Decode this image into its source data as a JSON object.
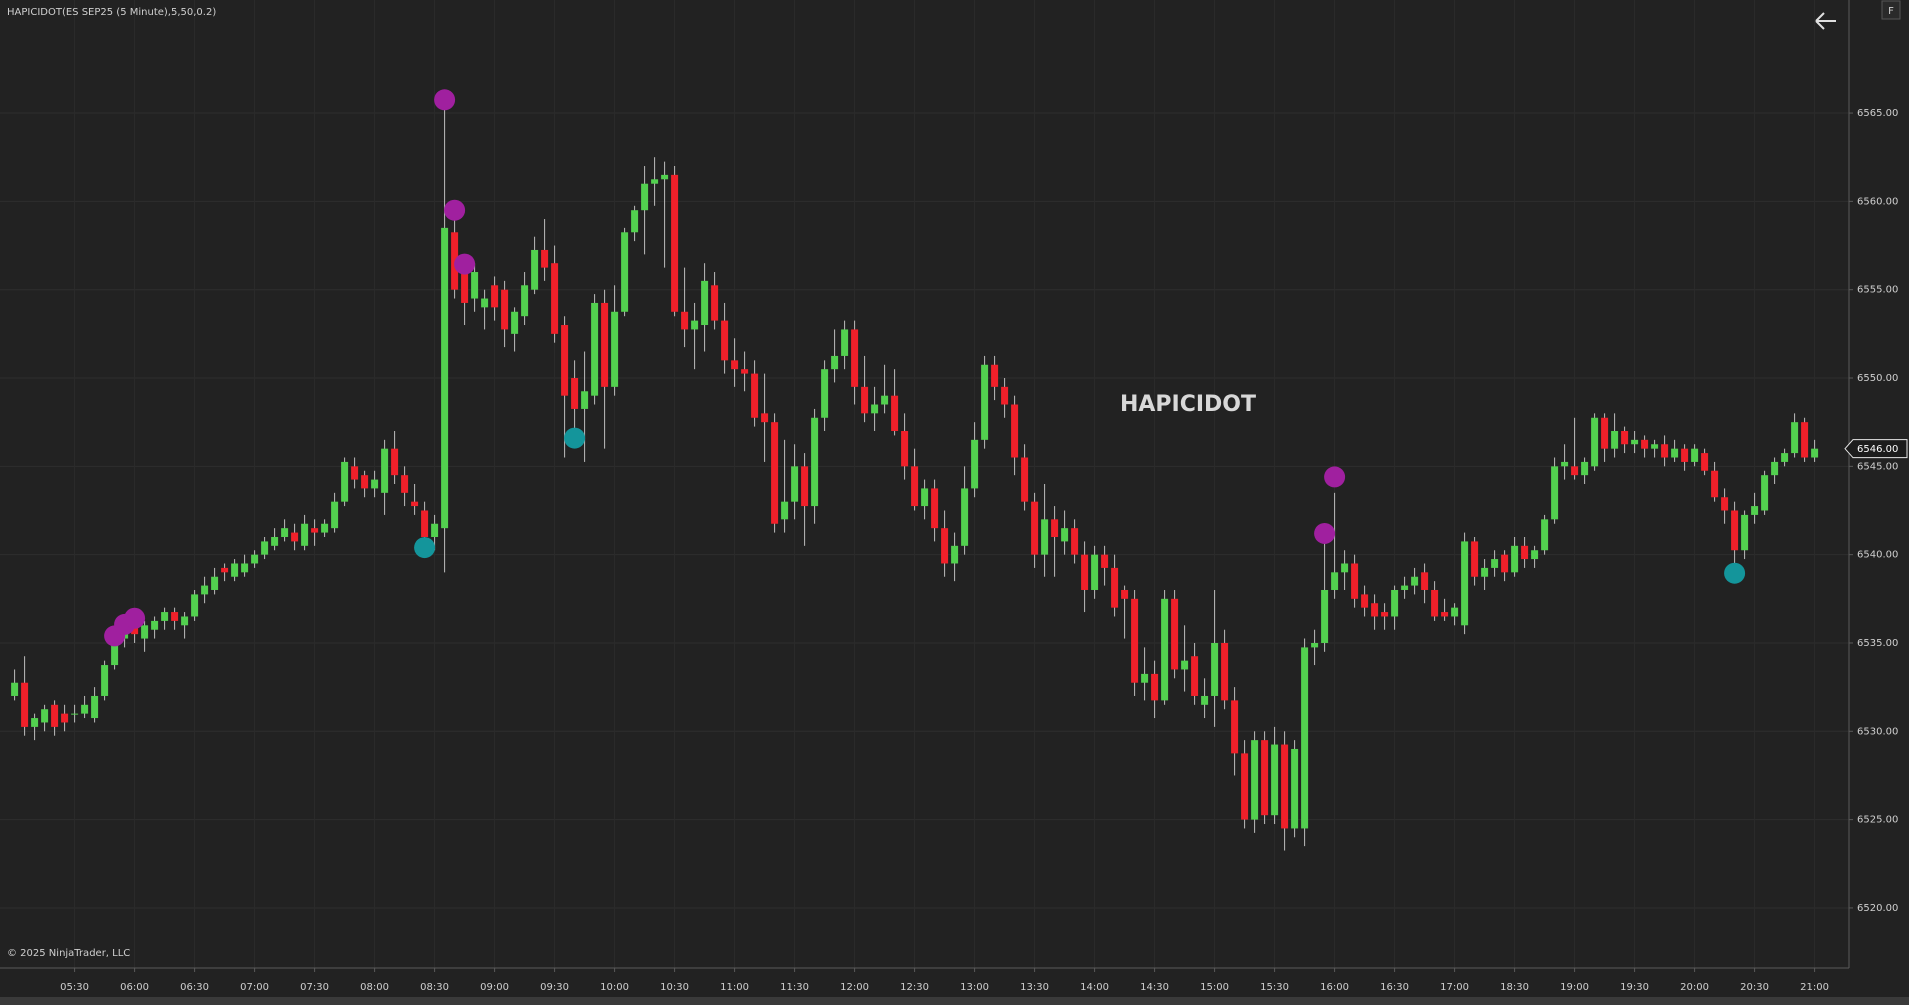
{
  "chart_data": {
    "type": "candlestick",
    "title": "HAPICIDOT(ES SEP25 (5 Minute),5,50,0.2)",
    "watermark": "HAPICIDOT",
    "copyright": "© 2025 NinjaTrader, LLC",
    "button": "F",
    "categories": [
      null,
      null,
      null,
      null,
      null,
      null,
      "05:30",
      null,
      null,
      null,
      null,
      null,
      "06:00",
      null,
      null,
      null,
      null,
      null,
      "06:30",
      null,
      null,
      null,
      null,
      null,
      "07:00",
      null,
      null,
      null,
      null,
      null,
      "07:30",
      null,
      null,
      null,
      null,
      null,
      "08:00",
      null,
      null,
      null,
      null,
      null,
      "08:30",
      null,
      null,
      null,
      null,
      null,
      "09:00",
      null,
      null,
      null,
      null,
      null,
      "09:30",
      null,
      null,
      null,
      null,
      null,
      "10:00",
      null,
      null,
      null,
      null,
      null,
      "10:30",
      null,
      null,
      null,
      null,
      null,
      "11:00",
      null,
      null,
      null,
      null,
      null,
      "11:30",
      null,
      null,
      null,
      null,
      null,
      "12:00",
      null,
      null,
      null,
      null,
      null,
      "12:30",
      null,
      null,
      null,
      null,
      null,
      "13:00",
      null,
      null,
      null,
      null,
      null,
      "13:30",
      null,
      null,
      null,
      null,
      null,
      "14:00",
      null,
      null,
      null,
      null,
      null,
      "14:30",
      null,
      null,
      null,
      null,
      null,
      "15:00",
      null,
      null,
      null,
      null,
      null,
      "15:30",
      null,
      null,
      null,
      null,
      null,
      "16:00",
      null,
      null,
      null,
      null,
      null,
      "16:30",
      null,
      null,
      null,
      null,
      null,
      "17:00",
      null,
      null,
      null,
      null,
      null,
      "18:30",
      null,
      null,
      null,
      null,
      null,
      "19:00",
      null,
      null,
      null,
      null,
      null,
      "19:30",
      null,
      null,
      null,
      null,
      null,
      "20:00",
      null,
      null,
      null,
      null,
      null,
      "20:30",
      null,
      null,
      null,
      null,
      null,
      "21:00"
    ],
    "ohlc": [
      [
        6532,
        6533.5,
        6531.75,
        6532.75
      ],
      [
        6532.75,
        6534.25,
        6529.75,
        6530.25
      ],
      [
        6530.25,
        6531,
        6529.5,
        6530.75
      ],
      [
        6530.5,
        6531.5,
        6530,
        6531.25
      ],
      [
        6531.5,
        6531.75,
        6529.75,
        6530.25
      ],
      [
        6531,
        6531.5,
        6530,
        6530.5
      ],
      [
        6531,
        6531.5,
        6530.5,
        6531
      ],
      [
        6531,
        6532,
        6530.75,
        6531.5
      ],
      [
        6530.75,
        6532.5,
        6530.5,
        6532
      ],
      [
        6532,
        6534,
        6531.75,
        6533.75
      ],
      [
        6533.75,
        6535.75,
        6533.5,
        6535.5
      ],
      [
        6535.25,
        6536,
        6534.75,
        6535.75
      ],
      [
        6536,
        6536.5,
        6535,
        6535.5
      ],
      [
        6535.25,
        6536.25,
        6534.5,
        6536
      ],
      [
        6535.75,
        6536.5,
        6535.25,
        6536.25
      ],
      [
        6536.25,
        6537,
        6535.75,
        6536.75
      ],
      [
        6536.75,
        6537,
        6535.75,
        6536.25
      ],
      [
        6536,
        6536.75,
        6535.25,
        6536.5
      ],
      [
        6536.5,
        6538,
        6536.25,
        6537.75
      ],
      [
        6537.75,
        6538.75,
        6537.25,
        6538.25
      ],
      [
        6538,
        6539.25,
        6537.75,
        6538.75
      ],
      [
        6539.25,
        6539.5,
        6538.5,
        6539
      ],
      [
        6538.75,
        6539.75,
        6538.5,
        6539.5
      ],
      [
        6539,
        6540,
        6538.75,
        6539.5
      ],
      [
        6539.5,
        6540.25,
        6539.25,
        6540
      ],
      [
        6540,
        6541,
        6539.75,
        6540.75
      ],
      [
        6540.5,
        6541.5,
        6540.25,
        6541
      ],
      [
        6541,
        6542,
        6540.75,
        6541.5
      ],
      [
        6541.25,
        6541.75,
        6540.25,
        6540.75
      ],
      [
        6540.5,
        6542.25,
        6540.25,
        6541.75
      ],
      [
        6541.5,
        6542,
        6540.5,
        6541.25
      ],
      [
        6541.25,
        6542,
        6541,
        6541.75
      ],
      [
        6541.5,
        6543.5,
        6541.25,
        6543
      ],
      [
        6543,
        6545.5,
        6542.75,
        6545.25
      ],
      [
        6545,
        6545.5,
        6543.75,
        6544.25
      ],
      [
        6544.5,
        6544.75,
        6543.25,
        6543.75
      ],
      [
        6543.75,
        6544.75,
        6543.25,
        6544.25
      ],
      [
        6543.5,
        6546.5,
        6542.25,
        6546
      ],
      [
        6546,
        6547,
        6544,
        6544.5
      ],
      [
        6544.5,
        6545,
        6542.75,
        6543.5
      ],
      [
        6543,
        6544,
        6542.25,
        6542.75
      ],
      [
        6542.5,
        6543,
        6540.5,
        6541
      ],
      [
        6541,
        6542.25,
        6540.25,
        6541.75
      ],
      [
        6541.5,
        6565.5,
        6539,
        6558.5
      ],
      [
        6558.25,
        6559.5,
        6554.5,
        6555
      ],
      [
        6556.5,
        6557,
        6553,
        6554.25
      ],
      [
        6554.5,
        6556.5,
        6553.75,
        6556
      ],
      [
        6554,
        6555,
        6552.75,
        6554.5
      ],
      [
        6555.25,
        6555.75,
        6553.25,
        6554
      ],
      [
        6555,
        6555.5,
        6551.75,
        6552.75
      ],
      [
        6552.5,
        6554,
        6551.5,
        6553.75
      ],
      [
        6553.5,
        6556,
        6553,
        6555.25
      ],
      [
        6555,
        6558,
        6554.75,
        6557.25
      ],
      [
        6557.25,
        6559,
        6555.5,
        6556.25
      ],
      [
        6556.5,
        6557.5,
        6552,
        6552.5
      ],
      [
        6553,
        6553.5,
        6545.5,
        6549
      ],
      [
        6550,
        6551,
        6546.5,
        6548.25
      ],
      [
        6548.25,
        6551.5,
        6545.25,
        6549.25
      ],
      [
        6549,
        6554.75,
        6548.5,
        6554.25
      ],
      [
        6554.25,
        6555,
        6546,
        6549.5
      ],
      [
        6549.5,
        6555.25,
        6549,
        6553.75
      ],
      [
        6553.75,
        6558.5,
        6553.5,
        6558.25
      ],
      [
        6558.25,
        6559.75,
        6557.75,
        6559.5
      ],
      [
        6559.5,
        6562,
        6557,
        6561
      ],
      [
        6561,
        6562.5,
        6559.75,
        6561.25
      ],
      [
        6561.25,
        6562.25,
        6556.25,
        6561.5
      ],
      [
        6561.5,
        6562,
        6553.5,
        6553.75
      ],
      [
        6553.75,
        6556.25,
        6551.75,
        6552.75
      ],
      [
        6552.75,
        6554.25,
        6550.5,
        6553.25
      ],
      [
        6553,
        6556.5,
        6551.5,
        6555.5
      ],
      [
        6555.25,
        6556,
        6552.75,
        6553.25
      ],
      [
        6553.25,
        6554.25,
        6550.25,
        6551
      ],
      [
        6551,
        6552.25,
        6549.5,
        6550.5
      ],
      [
        6550.5,
        6551.5,
        6549.25,
        6550.25
      ],
      [
        6550.25,
        6551,
        6547.25,
        6547.75
      ],
      [
        6548,
        6550.25,
        6545.25,
        6547.5
      ],
      [
        6547.5,
        6548,
        6541.25,
        6541.75
      ],
      [
        6542,
        6546.5,
        6541.25,
        6543
      ],
      [
        6543,
        6546.25,
        6542,
        6545
      ],
      [
        6545,
        6545.75,
        6540.5,
        6542.75
      ],
      [
        6542.75,
        6548.25,
        6541.75,
        6547.75
      ],
      [
        6547.75,
        6551,
        6547,
        6550.5
      ],
      [
        6550.5,
        6552.75,
        6549.75,
        6551.25
      ],
      [
        6551.25,
        6553.25,
        6550.5,
        6552.75
      ],
      [
        6552.75,
        6553.25,
        6548.5,
        6549.5
      ],
      [
        6549.5,
        6551.25,
        6547.5,
        6548
      ],
      [
        6548,
        6549.5,
        6547,
        6548.5
      ],
      [
        6548.5,
        6550.75,
        6548,
        6549
      ],
      [
        6549,
        6550.5,
        6546.75,
        6547
      ],
      [
        6547,
        6548,
        6544.25,
        6545
      ],
      [
        6545,
        6546,
        6542.5,
        6542.75
      ],
      [
        6542.75,
        6544.25,
        6542,
        6543.75
      ],
      [
        6543.75,
        6544.25,
        6540.75,
        6541.5
      ],
      [
        6541.5,
        6542.5,
        6538.75,
        6539.5
      ],
      [
        6539.5,
        6541.25,
        6538.5,
        6540.5
      ],
      [
        6540.5,
        6545,
        6540,
        6543.75
      ],
      [
        6543.75,
        6547.5,
        6543.25,
        6546.5
      ],
      [
        6546.5,
        6551.25,
        6546,
        6550.75
      ],
      [
        6550.75,
        6551.25,
        6548.75,
        6549.5
      ],
      [
        6549.5,
        6550,
        6547.75,
        6548.5
      ],
      [
        6548.5,
        6549,
        6544.5,
        6545.5
      ],
      [
        6545.5,
        6546.25,
        6542.5,
        6543
      ],
      [
        6543,
        6543.5,
        6539.25,
        6540
      ],
      [
        6540,
        6544,
        6538.75,
        6542
      ],
      [
        6542,
        6542.75,
        6538.75,
        6541
      ],
      [
        6540.75,
        6542.5,
        6540,
        6541.5
      ],
      [
        6541.5,
        6542,
        6539.5,
        6540
      ],
      [
        6540,
        6540.75,
        6536.75,
        6538
      ],
      [
        6538,
        6540.5,
        6537.5,
        6540
      ],
      [
        6540,
        6540.5,
        6538.25,
        6539.25
      ],
      [
        6539.25,
        6540,
        6536.5,
        6537
      ],
      [
        6538,
        6538.25,
        6535.25,
        6537.5
      ],
      [
        6537.5,
        6538,
        6532,
        6532.75
      ],
      [
        6532.75,
        6534.75,
        6531.75,
        6533.25
      ],
      [
        6533.25,
        6534,
        6530.75,
        6531.75
      ],
      [
        6531.75,
        6538,
        6531.5,
        6537.5
      ],
      [
        6537.5,
        6538,
        6533,
        6533.5
      ],
      [
        6533.5,
        6536,
        6532.25,
        6534
      ],
      [
        6534.25,
        6535,
        6531.5,
        6532
      ],
      [
        6531.5,
        6533,
        6530.75,
        6532
      ],
      [
        6532,
        6538,
        6530.25,
        6535
      ],
      [
        6535,
        6535.75,
        6531.25,
        6531.75
      ],
      [
        6531.75,
        6532.5,
        6527.5,
        6528.75
      ],
      [
        6528.75,
        6529.5,
        6524.5,
        6525
      ],
      [
        6525,
        6530,
        6524.25,
        6529.5
      ],
      [
        6529.5,
        6530,
        6524.75,
        6525.25
      ],
      [
        6525.25,
        6530.25,
        6524.75,
        6529.25
      ],
      [
        6529.25,
        6530,
        6523.25,
        6524.5
      ],
      [
        6524.5,
        6529.5,
        6524,
        6529
      ],
      [
        6524.5,
        6535.25,
        6523.5,
        6534.75
      ],
      [
        6534.75,
        6535.75,
        6533.75,
        6535
      ],
      [
        6535,
        6540.75,
        6534.5,
        6538
      ],
      [
        6538,
        6543.5,
        6537.5,
        6539
      ],
      [
        6539,
        6540.25,
        6538,
        6539.5
      ],
      [
        6539.5,
        6540,
        6537,
        6537.5
      ],
      [
        6537.75,
        6538.25,
        6536.5,
        6537
      ],
      [
        6537.25,
        6537.75,
        6535.75,
        6536.5
      ],
      [
        6536.75,
        6537.25,
        6535.75,
        6536.5
      ],
      [
        6536.5,
        6538.25,
        6535.75,
        6538
      ],
      [
        6538,
        6538.75,
        6537.5,
        6538.25
      ],
      [
        6538.25,
        6539.25,
        6537.75,
        6538.75
      ],
      [
        6539,
        6539.5,
        6537.25,
        6538
      ],
      [
        6538,
        6538.5,
        6536.25,
        6536.5
      ],
      [
        6536.75,
        6537.5,
        6536.25,
        6536.5
      ],
      [
        6536.5,
        6537.25,
        6536,
        6537
      ],
      [
        6536,
        6541.25,
        6535.5,
        6540.75
      ],
      [
        6540.75,
        6541,
        6538.25,
        6538.75
      ],
      [
        6538.75,
        6539.75,
        6538,
        6539.25
      ],
      [
        6539.25,
        6540.25,
        6538.75,
        6539.75
      ],
      [
        6540,
        6540.25,
        6538.5,
        6539
      ],
      [
        6539,
        6541,
        6538.75,
        6540.5
      ],
      [
        6540.5,
        6541,
        6539.25,
        6539.75
      ],
      [
        6539.75,
        6540.5,
        6539.25,
        6540.25
      ],
      [
        6540.25,
        6542.25,
        6540,
        6542
      ],
      [
        6542,
        6545.5,
        6541.75,
        6545
      ],
      [
        6545,
        6546.25,
        6544.25,
        6545.25
      ],
      [
        6545,
        6547.75,
        6544.25,
        6544.5
      ],
      [
        6544.5,
        6545.5,
        6544,
        6545.25
      ],
      [
        6545,
        6548,
        6544.75,
        6547.75
      ],
      [
        6547.75,
        6548,
        6545.25,
        6546
      ],
      [
        6546,
        6548,
        6545.5,
        6547
      ],
      [
        6547,
        6547.25,
        6545.75,
        6546.25
      ],
      [
        6546.25,
        6547,
        6545.75,
        6546.5
      ],
      [
        6546.5,
        6546.75,
        6545.5,
        6546
      ],
      [
        6546,
        6546.5,
        6545.5,
        6546.25
      ],
      [
        6546.25,
        6546.75,
        6545,
        6545.5
      ],
      [
        6545.5,
        6546.5,
        6545.25,
        6546
      ],
      [
        6546,
        6546.25,
        6544.75,
        6545.25
      ],
      [
        6545.25,
        6546.25,
        6545,
        6546
      ],
      [
        6545.75,
        6546,
        6544.5,
        6544.75
      ],
      [
        6544.75,
        6545.25,
        6543,
        6543.25
      ],
      [
        6543.25,
        6543.75,
        6541.75,
        6542.5
      ],
      [
        6542.5,
        6543,
        6539.5,
        6540.25
      ],
      [
        6540.25,
        6542.5,
        6539.75,
        6542.25
      ],
      [
        6542.25,
        6543.5,
        6541.75,
        6542.75
      ],
      [
        6542.5,
        6544.75,
        6542.25,
        6544.5
      ],
      [
        6544.5,
        6545.5,
        6544,
        6545.25
      ],
      [
        6545.25,
        6546,
        6545,
        6545.75
      ],
      [
        6545.75,
        6548,
        6545.5,
        6547.5
      ],
      [
        6547.5,
        6547.75,
        6545.25,
        6545.5
      ],
      [
        6545.5,
        6546.5,
        6545.25,
        6546
      ]
    ],
    "up_color": "#52d04f",
    "down_color": "#f0202a",
    "wick_color": "#bdbdbd",
    "markers": [
      {
        "bar": 10,
        "value": 6535.4,
        "color": "#a0209f"
      },
      {
        "bar": 11,
        "value": 6536.05,
        "color": "#a0209f"
      },
      {
        "bar": 12,
        "value": 6536.4,
        "color": "#a0209f"
      },
      {
        "bar": 41,
        "value": 6540.4,
        "color": "#14959b"
      },
      {
        "bar": 43,
        "value": 6565.75,
        "color": "#a0209f"
      },
      {
        "bar": 44,
        "value": 6559.5,
        "color": "#a0209f"
      },
      {
        "bar": 45,
        "value": 6556.45,
        "color": "#a0209f"
      },
      {
        "bar": 56,
        "value": 6546.6,
        "color": "#14959b"
      },
      {
        "bar": 131,
        "value": 6541.2,
        "color": "#a0209f"
      },
      {
        "bar": 132,
        "value": 6544.4,
        "color": "#a0209f"
      },
      {
        "bar": 172,
        "value": 6538.95,
        "color": "#14959b"
      }
    ],
    "last_price": {
      "value": 6546,
      "label": "6546.00"
    },
    "ylim": [
      6516.6,
      6571.4
    ],
    "yticks": [
      {
        "value": 6520,
        "label": "6520.00"
      },
      {
        "value": 6525,
        "label": "6525.00"
      },
      {
        "value": 6530,
        "label": "6530.00"
      },
      {
        "value": 6535,
        "label": "6535.00"
      },
      {
        "value": 6540,
        "label": "6540.00"
      },
      {
        "value": 6545,
        "label": "6545.00"
      },
      {
        "value": 6550,
        "label": "6550.00"
      },
      {
        "value": 6555,
        "label": "6555.00"
      },
      {
        "value": 6560,
        "label": "6560.00"
      },
      {
        "value": 6565,
        "label": "6565.00"
      }
    ],
    "grid": true
  }
}
